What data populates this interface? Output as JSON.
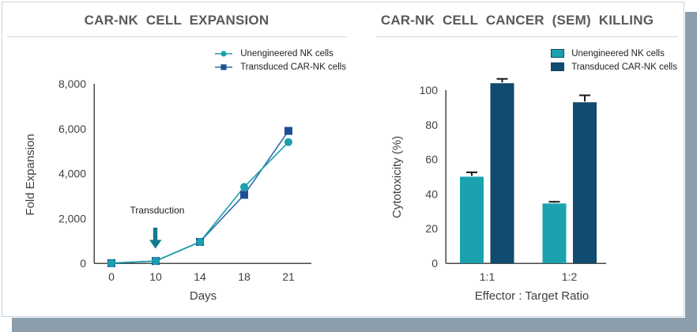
{
  "colors": {
    "teal": "#1A9FAD",
    "teal_bar": "#1AA3AF",
    "navy_bar": "#114B6D",
    "navy_marker": "#1F4E94",
    "navy_line": "#2E6CA8",
    "arrow": "#0E7C8C",
    "title_text": "#595959",
    "axis_text": "#404040",
    "axis_line": "#4A4A4A",
    "error_bar": "#1A1A1A",
    "shadow": "#8C9DAB",
    "title_rule": "#D2D2D2",
    "swatch_border": "#0D4763"
  },
  "chart_data": [
    {
      "type": "line",
      "title": "CAR-NK CELL EXPANSION",
      "xlabel": "Days",
      "ylabel": "Fold Expansion",
      "x_categories": [
        "0",
        "10",
        "14",
        "18",
        "21"
      ],
      "ylim": [
        0,
        8000
      ],
      "yticks": [
        0,
        2000,
        4000,
        6000,
        8000
      ],
      "ytick_labels": [
        "0",
        "2,000",
        "4,000",
        "6,000",
        "8,000"
      ],
      "grid": false,
      "legend_position": "top-right",
      "series": [
        {
          "name": "Unengineered NK cells",
          "marker": "circle",
          "color": "#1A9FAD",
          "line_color": "#1A9FAD",
          "values": [
            5,
            100,
            950,
            3400,
            5400
          ]
        },
        {
          "name": "Transduced CAR-NK cells",
          "marker": "square",
          "color": "#1F4E94",
          "line_color": "#2E6CA8",
          "values": [
            5,
            100,
            950,
            3050,
            5900
          ]
        }
      ],
      "annotation": {
        "text": "Transduction",
        "x_category": "10",
        "color": "#0E7C8C"
      }
    },
    {
      "type": "bar",
      "title": "CAR-NK CELL CANCER (SEM) KILLING",
      "xlabel": "Effector : Target Ratio",
      "ylabel": "Cytotoxicity (%)",
      "categories": [
        "1:1",
        "1:2"
      ],
      "ylim": [
        0,
        110
      ],
      "yticks": [
        0,
        20,
        40,
        60,
        80,
        100
      ],
      "ytick_labels": [
        "0",
        "20",
        "40",
        "60",
        "80",
        "100"
      ],
      "error_type": "SEM",
      "grid": false,
      "legend_position": "top-right",
      "series": [
        {
          "name": "Unengineered NK cells",
          "color": "#1AA3AF",
          "values": [
            50,
            34.5
          ],
          "errors": [
            2.5,
            1
          ]
        },
        {
          "name": "Transduced CAR-NK cells",
          "color": "#114B6D",
          "values": [
            104,
            93
          ],
          "errors": [
            2.5,
            4
          ]
        }
      ]
    }
  ]
}
